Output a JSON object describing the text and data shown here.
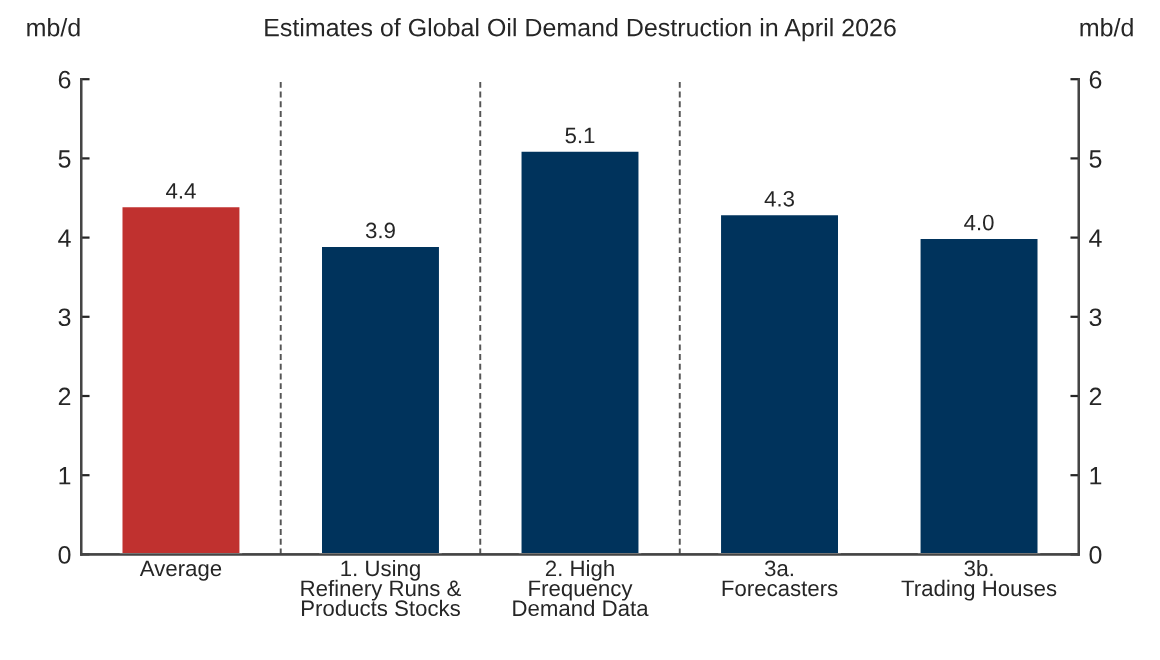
{
  "chart_data": {
    "type": "bar",
    "title": "Estimates of Global Oil Demand Destruction in April 2026",
    "ylabel": "mb/d",
    "y2label": "mb/d",
    "categories": [
      "Average",
      "1. Using\nRefinery Runs &\nProducts Stocks",
      "2. High\nFrequency\nDemand Data",
      "3a.\nForecasters",
      "3b.\nTrading Houses"
    ],
    "values": [
      4.4,
      3.9,
      5.1,
      4.3,
      4.0
    ],
    "value_labels": [
      "4.4",
      "3.9",
      "5.1",
      "4.3",
      "4.0"
    ],
    "colors": [
      "#c0312f",
      "#00335c",
      "#00335c",
      "#00335c",
      "#00335c"
    ],
    "ylim": [
      0,
      6
    ],
    "yticks": [
      0,
      1,
      2,
      3,
      4,
      5,
      6
    ],
    "y2lim": [
      0,
      6
    ],
    "y2ticks": [
      0,
      1,
      2,
      3,
      4,
      5,
      6
    ],
    "grid": false,
    "legend": false
  }
}
